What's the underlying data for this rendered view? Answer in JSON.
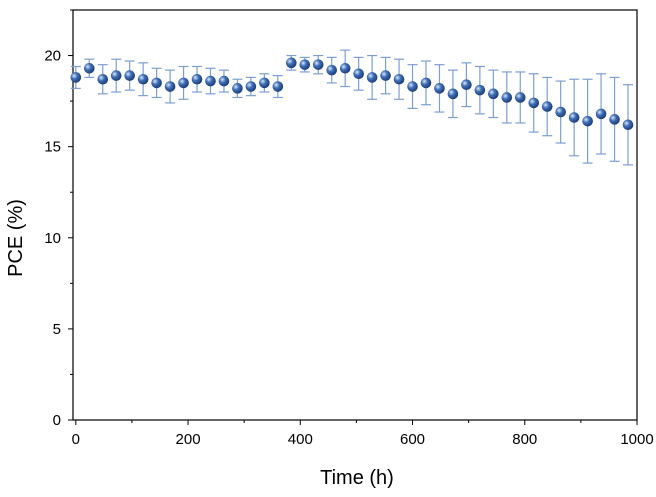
{
  "chart_data": {
    "type": "scatter",
    "title": "",
    "xlabel": "Time (h)",
    "ylabel": "PCE (%)",
    "xlim": [
      -5,
      1000
    ],
    "ylim": [
      0,
      22.5
    ],
    "xticks": [
      0,
      200,
      400,
      600,
      800,
      1000
    ],
    "yticks": [
      0,
      5,
      10,
      15,
      20
    ],
    "grid": false,
    "legend": "none",
    "marker_color": "#3f6fb8",
    "errorbar_color": "#7b9fd4",
    "series": [
      {
        "x": [
          0,
          24,
          48,
          72,
          96,
          120,
          144,
          168,
          192,
          216,
          240,
          264,
          288,
          312,
          336,
          360,
          384,
          408,
          432,
          456,
          480,
          504,
          528,
          552,
          576,
          600,
          624,
          648,
          672,
          696,
          720,
          744,
          768,
          792,
          816,
          840,
          864,
          888,
          912,
          936,
          960,
          984
        ],
        "y": [
          18.8,
          19.3,
          18.7,
          18.9,
          18.9,
          18.7,
          18.5,
          18.3,
          18.5,
          18.7,
          18.6,
          18.6,
          18.2,
          18.3,
          18.5,
          18.3,
          19.6,
          19.5,
          19.5,
          19.2,
          19.3,
          19.0,
          18.8,
          18.9,
          18.7,
          18.3,
          18.5,
          18.2,
          17.9,
          18.4,
          18.1,
          17.9,
          17.7,
          17.7,
          17.4,
          17.2,
          16.9,
          16.6,
          16.4,
          16.8,
          16.5,
          16.2
        ],
        "error": [
          0.6,
          0.5,
          0.8,
          0.9,
          0.8,
          0.9,
          0.8,
          0.9,
          0.9,
          0.7,
          0.7,
          0.6,
          0.5,
          0.5,
          0.5,
          0.6,
          0.4,
          0.4,
          0.5,
          0.7,
          1.0,
          0.9,
          1.2,
          1.0,
          1.1,
          1.2,
          1.2,
          1.3,
          1.3,
          1.2,
          1.3,
          1.3,
          1.4,
          1.4,
          1.6,
          1.6,
          1.7,
          2.1,
          2.3,
          2.2,
          2.3,
          2.2
        ]
      }
    ]
  }
}
